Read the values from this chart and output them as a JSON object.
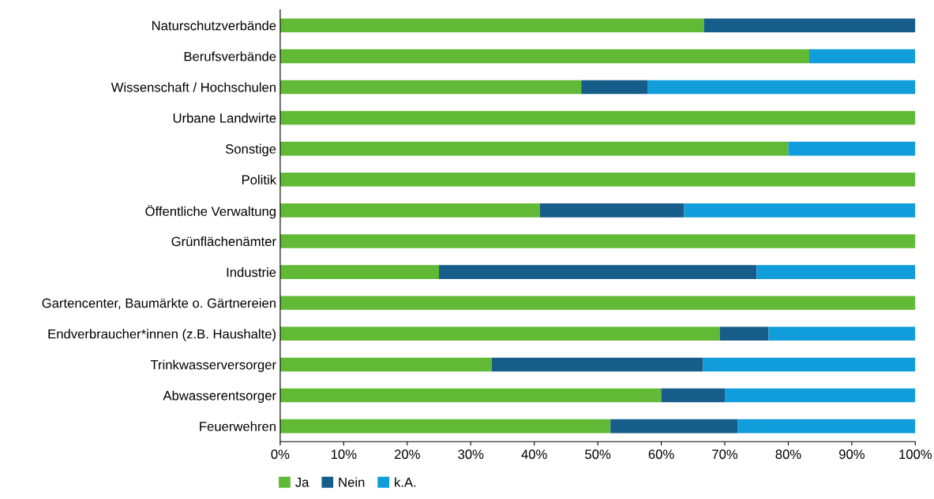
{
  "chart_data": {
    "type": "bar",
    "orientation": "horizontal",
    "stacked": true,
    "categories": [
      "Naturschutzverbände",
      "Berufsverbände",
      "Wissenschaft / Hochschulen",
      "Urbane Landwirte",
      "Sonstige",
      "Politik",
      "Öffentliche Verwaltung",
      "Grünflächenämter",
      "Industrie",
      "Gartencenter, Baumärkte o. Gärtnereien",
      "Endverbraucher*innen (z.B. Haushalte)",
      "Trinkwasserversorger",
      "Abwasserentsorger",
      "Feuerwehren"
    ],
    "series": [
      {
        "name": "Ja",
        "color": "#62b936",
        "values": [
          66.7,
          83.3,
          47.4,
          100,
          80,
          100,
          40.9,
          100,
          25,
          100,
          69.2,
          33.3,
          60,
          52
        ]
      },
      {
        "name": "Nein",
        "color": "#175d8a",
        "values": [
          33.3,
          0,
          10.5,
          0,
          0,
          0,
          22.7,
          0,
          50,
          0,
          7.7,
          33.3,
          10,
          20
        ]
      },
      {
        "name": "k.A.",
        "color": "#119ddb",
        "values": [
          0,
          16.7,
          42.1,
          0,
          20,
          0,
          36.4,
          0,
          25,
          0,
          23.1,
          33.4,
          30,
          28
        ]
      }
    ],
    "xlim": [
      0,
      100
    ],
    "xticks": [
      {
        "value": 0,
        "label": "0%"
      },
      {
        "value": 10,
        "label": "10%"
      },
      {
        "value": 20,
        "label": "20%"
      },
      {
        "value": 30,
        "label": "30%"
      },
      {
        "value": 40,
        "label": "40%"
      },
      {
        "value": 50,
        "label": "50%"
      },
      {
        "value": 60,
        "label": "60%"
      },
      {
        "value": 70,
        "label": "70%"
      },
      {
        "value": 80,
        "label": "80%"
      },
      {
        "value": 90,
        "label": "90%"
      },
      {
        "value": 100,
        "label": "100%"
      }
    ],
    "grid": false,
    "legend": "bottom left"
  }
}
